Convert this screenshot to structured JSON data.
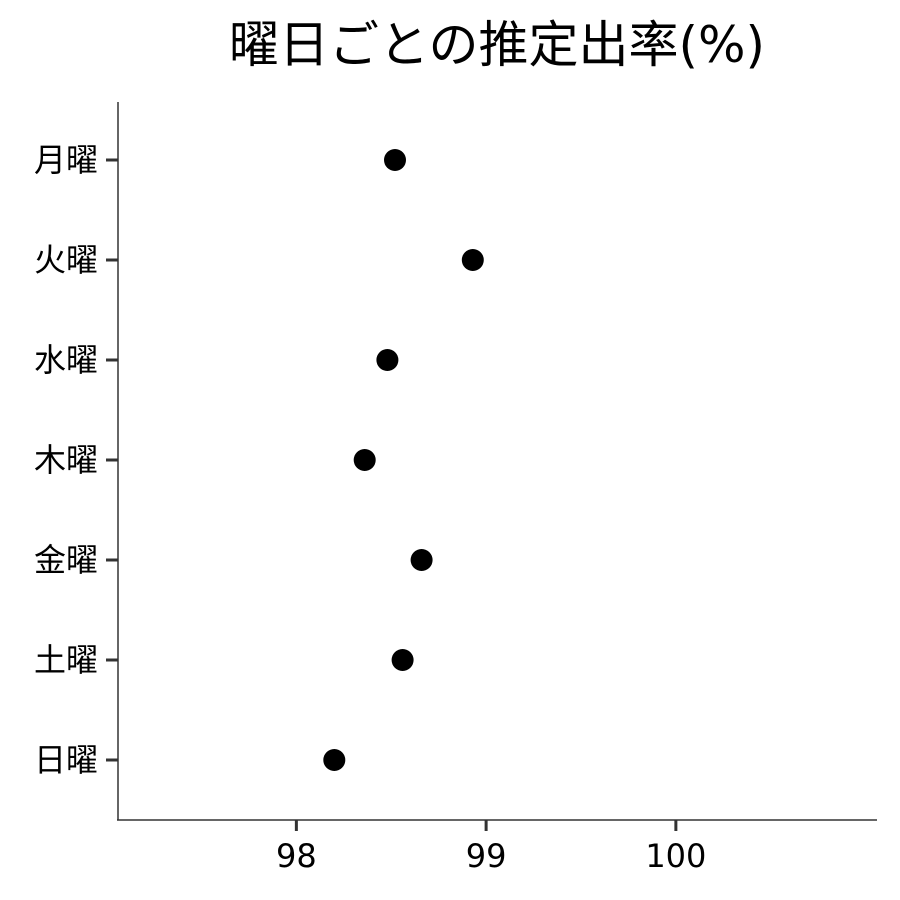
{
  "chart_data": {
    "type": "scatter",
    "title": "曜日ごとの推定出率(%)",
    "xlabel": "",
    "ylabel": "",
    "xlim": [
      97.06,
      101.06
    ],
    "x_ticks": [
      98,
      99,
      100
    ],
    "categories": [
      "月曜",
      "火曜",
      "水曜",
      "木曜",
      "金曜",
      "土曜",
      "日曜"
    ],
    "values": [
      98.52,
      98.93,
      98.48,
      98.36,
      98.66,
      98.56,
      98.2
    ],
    "grid": false,
    "legend": "none",
    "point_color": "#000000"
  }
}
